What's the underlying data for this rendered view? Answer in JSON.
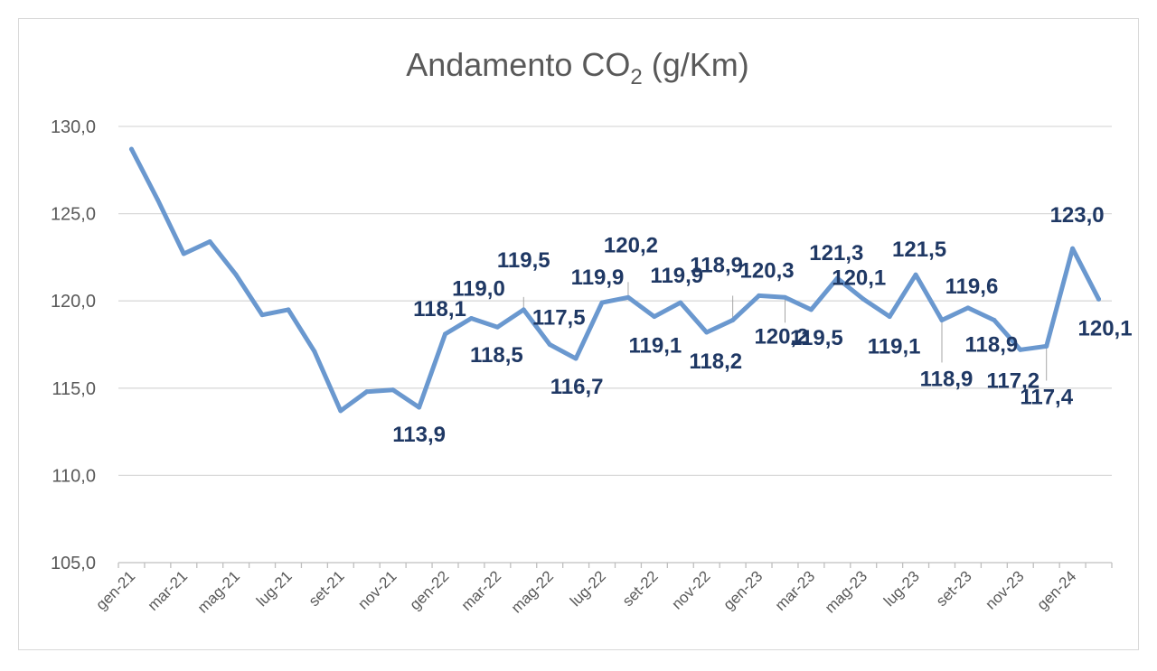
{
  "chart_data": {
    "type": "line",
    "title": "Andamento CO",
    "title_sub": "2",
    "title_suffix": " (g/Km)",
    "xlabel": "",
    "ylabel": "",
    "ylim": [
      105,
      130
    ],
    "yticks": [
      105,
      110,
      115,
      120,
      125,
      130
    ],
    "ytick_labels": [
      "105,0",
      "110,0",
      "115,0",
      "120,0",
      "125,0",
      "130,0"
    ],
    "grid": true,
    "legend": "none",
    "line_color": "#6a98cf",
    "label_color": "#1f3864",
    "categories": [
      "gen-21",
      "feb-21",
      "mar-21",
      "apr-21",
      "mag-21",
      "giu-21",
      "lug-21",
      "ago-21",
      "set-21",
      "ott-21",
      "nov-21",
      "dic-21",
      "gen-22",
      "feb-22",
      "mar-22",
      "apr-22",
      "mag-22",
      "giu-22",
      "lug-22",
      "ago-22",
      "set-22",
      "ott-22",
      "nov-22",
      "dic-22",
      "gen-23",
      "feb-23",
      "mar-23",
      "apr-23",
      "mag-23",
      "giu-23",
      "lug-23",
      "ago-23",
      "set-23",
      "ott-23",
      "nov-23",
      "dic-23",
      "gen-24",
      "feb-24"
    ],
    "x_tick_labels": [
      {
        "index": 0,
        "label": "gen-21"
      },
      {
        "index": 2,
        "label": "mar-21"
      },
      {
        "index": 4,
        "label": "mag-21"
      },
      {
        "index": 6,
        "label": "lug-21"
      },
      {
        "index": 8,
        "label": "set-21"
      },
      {
        "index": 10,
        "label": "nov-21"
      },
      {
        "index": 12,
        "label": "gen-22"
      },
      {
        "index": 14,
        "label": "mar-22"
      },
      {
        "index": 16,
        "label": "mag-22"
      },
      {
        "index": 18,
        "label": "lug-22"
      },
      {
        "index": 20,
        "label": "set-22"
      },
      {
        "index": 22,
        "label": "nov-22"
      },
      {
        "index": 24,
        "label": "gen-23"
      },
      {
        "index": 26,
        "label": "mar-23"
      },
      {
        "index": 28,
        "label": "mag-23"
      },
      {
        "index": 30,
        "label": "lug-23"
      },
      {
        "index": 32,
        "label": "set-23"
      },
      {
        "index": 34,
        "label": "nov-23"
      },
      {
        "index": 36,
        "label": "gen-24"
      }
    ],
    "series": [
      {
        "values": [
          128.7,
          125.8,
          122.7,
          123.4,
          121.5,
          119.2,
          119.5,
          117.1,
          113.7,
          114.8,
          114.9,
          113.9,
          118.1,
          119.0,
          118.5,
          119.5,
          117.5,
          116.7,
          119.9,
          120.2,
          119.1,
          119.9,
          118.2,
          118.9,
          120.3,
          120.2,
          119.5,
          121.3,
          120.1,
          119.1,
          121.5,
          118.9,
          119.6,
          118.9,
          117.2,
          117.4,
          123.0,
          120.1
        ]
      }
    ],
    "data_labels": [
      {
        "index": 11,
        "text": "113,9"
      },
      {
        "index": 12,
        "text": "118,1"
      },
      {
        "index": 13,
        "text": "119,0"
      },
      {
        "index": 14,
        "text": "118,5"
      },
      {
        "index": 15,
        "text": "119,5"
      },
      {
        "index": 16,
        "text": "117,5"
      },
      {
        "index": 17,
        "text": "116,7"
      },
      {
        "index": 18,
        "text": "119,9"
      },
      {
        "index": 19,
        "text": "120,2"
      },
      {
        "index": 20,
        "text": "119,1"
      },
      {
        "index": 21,
        "text": "119,9"
      },
      {
        "index": 22,
        "text": "118,2"
      },
      {
        "index": 23,
        "text": "118,9"
      },
      {
        "index": 24,
        "text": "120,3"
      },
      {
        "index": 25,
        "text": "120,2"
      },
      {
        "index": 26,
        "text": "119,5"
      },
      {
        "index": 27,
        "text": "121,3"
      },
      {
        "index": 28,
        "text": "120,1"
      },
      {
        "index": 29,
        "text": "119,1"
      },
      {
        "index": 30,
        "text": "121,5"
      },
      {
        "index": 31,
        "text": "118,9"
      },
      {
        "index": 32,
        "text": "119,6"
      },
      {
        "index": 33,
        "text": "118,9"
      },
      {
        "index": 34,
        "text": "117,2"
      },
      {
        "index": 35,
        "text": "117,4"
      },
      {
        "index": 36,
        "text": "123,0"
      },
      {
        "index": 37,
        "text": "120,1"
      }
    ]
  }
}
